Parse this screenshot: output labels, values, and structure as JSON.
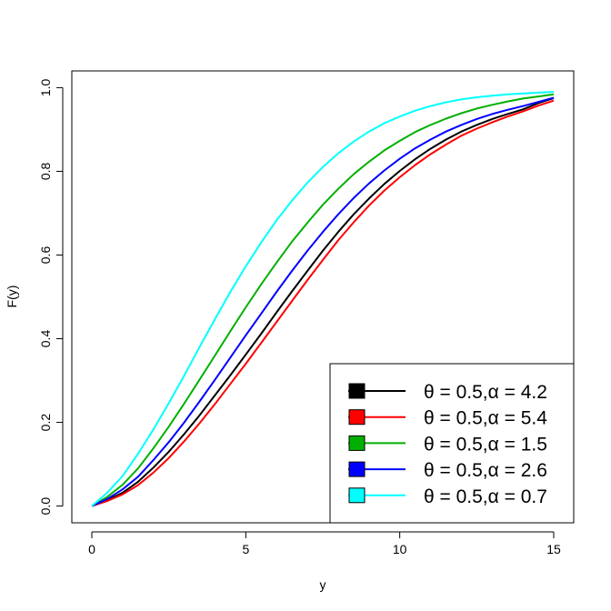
{
  "chart_data": {
    "type": "line",
    "xlabel": "y",
    "ylabel": "F(y)",
    "xlim": [
      -0.65,
      15.65
    ],
    "ylim": [
      -0.04,
      1.04
    ],
    "xticks": [
      0,
      5,
      10,
      15
    ],
    "yticks": [
      0.0,
      0.2,
      0.4,
      0.6,
      0.8,
      1.0
    ],
    "xtick_labels": [
      "0",
      "5",
      "10",
      "15"
    ],
    "ytick_labels": [
      "0.0",
      "0.2",
      "0.4",
      "0.6",
      "0.8",
      "1.0"
    ],
    "grid": false,
    "legend_position": "bottom-right",
    "x": [
      0,
      0.5,
      1,
      1.5,
      2,
      2.5,
      3,
      3.5,
      4,
      4.5,
      5,
      5.5,
      6,
      6.5,
      7,
      7.5,
      8,
      8.5,
      9,
      9.5,
      10,
      10.5,
      11,
      11.5,
      12,
      12.5,
      13,
      13.5,
      14,
      14.5,
      15
    ],
    "series": [
      {
        "name": "θ = 0.5,α = 4.2",
        "color": "#000000",
        "values": [
          0.0,
          0.014,
          0.032,
          0.058,
          0.092,
          0.13,
          0.172,
          0.217,
          0.265,
          0.313,
          0.362,
          0.412,
          0.463,
          0.513,
          0.562,
          0.61,
          0.655,
          0.697,
          0.735,
          0.77,
          0.801,
          0.829,
          0.854,
          0.876,
          0.895,
          0.911,
          0.925,
          0.937,
          0.948,
          0.963,
          0.975
        ]
      },
      {
        "name": "θ = 0.5,α = 5.4",
        "color": "#ff0000",
        "values": [
          0.0,
          0.012,
          0.028,
          0.05,
          0.08,
          0.115,
          0.155,
          0.198,
          0.244,
          0.292,
          0.34,
          0.39,
          0.44,
          0.49,
          0.54,
          0.588,
          0.635,
          0.678,
          0.718,
          0.754,
          0.786,
          0.815,
          0.841,
          0.864,
          0.885,
          0.902,
          0.917,
          0.931,
          0.943,
          0.957,
          0.969
        ]
      },
      {
        "name": "θ = 0.5,α = 1.5",
        "color": "#00b000",
        "values": [
          0.0,
          0.022,
          0.051,
          0.09,
          0.138,
          0.19,
          0.245,
          0.302,
          0.36,
          0.418,
          0.475,
          0.53,
          0.582,
          0.632,
          0.677,
          0.72,
          0.758,
          0.793,
          0.823,
          0.85,
          0.873,
          0.894,
          0.911,
          0.926,
          0.939,
          0.95,
          0.959,
          0.967,
          0.974,
          0.979,
          0.984
        ]
      },
      {
        "name": "θ = 0.5,α = 2.6",
        "color": "#0000ff",
        "values": [
          0.0,
          0.017,
          0.04,
          0.07,
          0.11,
          0.153,
          0.2,
          0.25,
          0.302,
          0.355,
          0.408,
          0.46,
          0.512,
          0.562,
          0.61,
          0.655,
          0.697,
          0.736,
          0.771,
          0.802,
          0.83,
          0.855,
          0.876,
          0.895,
          0.911,
          0.925,
          0.937,
          0.947,
          0.956,
          0.966,
          0.976
        ]
      },
      {
        "name": "θ = 0.5,α = 0.7",
        "color": "#00ffff",
        "values": [
          0.0,
          0.032,
          0.072,
          0.125,
          0.183,
          0.246,
          0.312,
          0.38,
          0.447,
          0.512,
          0.573,
          0.63,
          0.683,
          0.73,
          0.773,
          0.81,
          0.843,
          0.871,
          0.895,
          0.915,
          0.931,
          0.945,
          0.956,
          0.965,
          0.972,
          0.977,
          0.981,
          0.984,
          0.986,
          0.988,
          0.99
        ]
      }
    ]
  }
}
